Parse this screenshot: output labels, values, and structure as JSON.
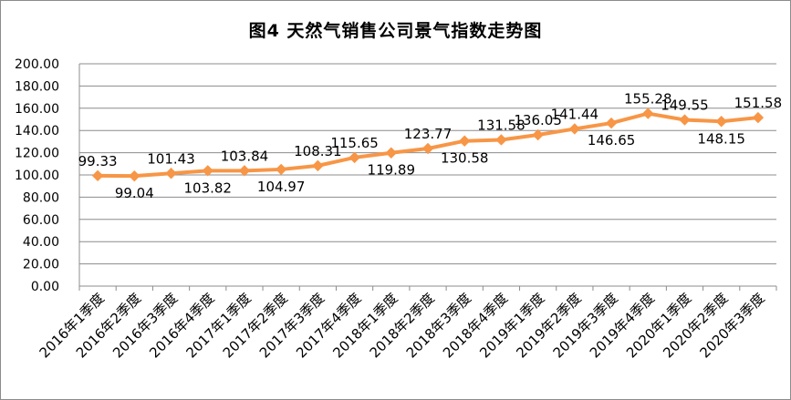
{
  "chart_data": {
    "type": "line",
    "title": "图4  天然气销售公司景气指数走势图",
    "xlabel": "",
    "ylabel": "",
    "ylim": [
      0,
      200
    ],
    "yticks": [
      "0.00",
      "20.00",
      "40.00",
      "60.00",
      "80.00",
      "100.00",
      "120.00",
      "140.00",
      "160.00",
      "180.00",
      "200.00"
    ],
    "grid": true,
    "legend": "none",
    "color": "#f79646",
    "categories": [
      "2016年1季度",
      "2016年2季度",
      "2016年3季度",
      "2016年4季度",
      "2017年1季度",
      "2017年2季度",
      "2017年3季度",
      "2017年4季度",
      "2018年1季度",
      "2018年2季度",
      "2018年3季度",
      "2018年4季度",
      "2019年1季度",
      "2019年2季度",
      "2019年3季度",
      "2019年4季度",
      "2020年1季度",
      "2020年2季度",
      "2020年3季度"
    ],
    "values": [
      99.33,
      99.04,
      101.43,
      103.82,
      103.84,
      104.97,
      108.31,
      115.65,
      119.89,
      123.77,
      130.58,
      131.58,
      136.05,
      141.44,
      146.65,
      155.28,
      149.55,
      148.15,
      151.58
    ],
    "data_labels": [
      "99.33",
      "99.04",
      "101.43",
      "103.82",
      "103.84",
      "104.97",
      "108.31",
      "115.65",
      "119.89",
      "123.77",
      "130.58",
      "131.58",
      "136.05",
      "141.44",
      "146.65",
      "155.28",
      "149.55",
      "148.15",
      "151.58"
    ],
    "label_side": [
      "above",
      "below",
      "above",
      "below",
      "above",
      "below",
      "above",
      "above",
      "below",
      "above",
      "below",
      "above",
      "above",
      "above",
      "below",
      "above",
      "above",
      "below",
      "above"
    ]
  }
}
